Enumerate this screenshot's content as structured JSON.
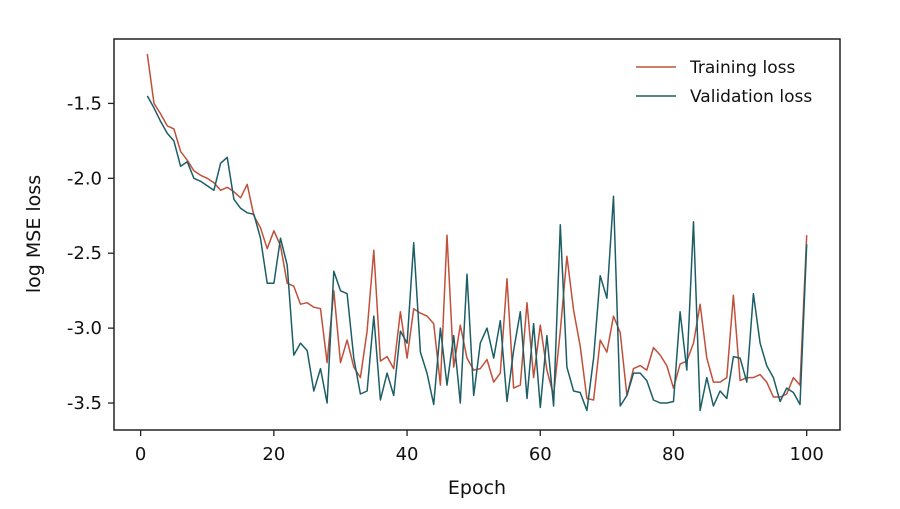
{
  "chart_data": {
    "type": "line",
    "xlabel": "Epoch",
    "ylabel": "log MSE loss",
    "xlim": [
      -4,
      105
    ],
    "ylim": [
      -3.68,
      -1.07
    ],
    "xticks": [
      0,
      20,
      40,
      60,
      80,
      100
    ],
    "yticks": [
      -1.5,
      -2.0,
      -2.5,
      -3.0,
      -3.5
    ],
    "xtick_labels": [
      "0",
      "20",
      "40",
      "60",
      "80",
      "100"
    ],
    "ytick_labels": [
      "-1.5",
      "-2.0",
      "-2.5",
      "-3.0",
      "-3.5"
    ],
    "grid": false,
    "legend_position": "top-right",
    "x": [
      1,
      2,
      3,
      4,
      5,
      6,
      7,
      8,
      9,
      10,
      11,
      12,
      13,
      14,
      15,
      16,
      17,
      18,
      19,
      20,
      21,
      22,
      23,
      24,
      25,
      26,
      27,
      28,
      29,
      30,
      31,
      32,
      33,
      34,
      35,
      36,
      37,
      38,
      39,
      40,
      41,
      42,
      43,
      44,
      45,
      46,
      47,
      48,
      49,
      50,
      51,
      52,
      53,
      54,
      55,
      56,
      57,
      58,
      59,
      60,
      61,
      62,
      63,
      64,
      65,
      66,
      67,
      68,
      69,
      70,
      71,
      72,
      73,
      74,
      75,
      76,
      77,
      78,
      79,
      80,
      81,
      82,
      83,
      84,
      85,
      86,
      87,
      88,
      89,
      90,
      91,
      92,
      93,
      94,
      95,
      96,
      97,
      98,
      99,
      100
    ],
    "series": [
      {
        "name": "Training loss",
        "color": "#c0503a",
        "values": [
          -1.17,
          -1.5,
          -1.57,
          -1.65,
          -1.67,
          -1.82,
          -1.88,
          -1.95,
          -1.98,
          -2.0,
          -2.03,
          -2.08,
          -2.06,
          -2.09,
          -2.13,
          -2.04,
          -2.25,
          -2.33,
          -2.47,
          -2.35,
          -2.45,
          -2.7,
          -2.72,
          -2.84,
          -2.83,
          -2.86,
          -2.87,
          -3.23,
          -2.75,
          -3.23,
          -3.08,
          -3.26,
          -3.33,
          -3.02,
          -2.48,
          -3.22,
          -3.19,
          -3.27,
          -2.89,
          -3.2,
          -2.87,
          -2.9,
          -2.92,
          -2.97,
          -3.38,
          -2.38,
          -3.26,
          -2.98,
          -3.2,
          -3.28,
          -3.27,
          -3.21,
          -3.36,
          -3.3,
          -2.67,
          -3.4,
          -3.38,
          -2.83,
          -3.33,
          -2.98,
          -3.28,
          -3.45,
          -3.02,
          -2.52,
          -2.88,
          -3.12,
          -3.47,
          -3.48,
          -3.08,
          -3.16,
          -2.92,
          -3.03,
          -3.45,
          -3.27,
          -3.25,
          -3.28,
          -3.13,
          -3.18,
          -3.25,
          -3.4,
          -3.24,
          -3.22,
          -3.1,
          -2.84,
          -3.2,
          -3.36,
          -3.36,
          -3.33,
          -2.78,
          -3.35,
          -3.33,
          -3.33,
          -3.31,
          -3.36,
          -3.46,
          -3.46,
          -3.44,
          -3.33,
          -3.38,
          -2.38
        ]
      },
      {
        "name": "Validation loss",
        "color": "#1c5e66",
        "values": [
          -1.45,
          -1.53,
          -1.62,
          -1.7,
          -1.75,
          -1.92,
          -1.89,
          -2.0,
          -2.02,
          -2.05,
          -2.08,
          -1.9,
          -1.86,
          -2.14,
          -2.2,
          -2.23,
          -2.24,
          -2.4,
          -2.7,
          -2.7,
          -2.4,
          -2.58,
          -3.18,
          -3.1,
          -3.15,
          -3.42,
          -3.27,
          -3.5,
          -2.62,
          -2.75,
          -2.77,
          -3.2,
          -3.44,
          -3.42,
          -2.92,
          -3.48,
          -3.3,
          -3.45,
          -3.02,
          -3.1,
          -2.43,
          -3.16,
          -3.3,
          -3.51,
          -3.0,
          -3.38,
          -3.05,
          -3.5,
          -2.64,
          -3.45,
          -3.1,
          -3.0,
          -3.2,
          -2.95,
          -3.49,
          -3.15,
          -2.89,
          -3.47,
          -2.97,
          -3.53,
          -3.05,
          -3.52,
          -2.31,
          -3.26,
          -3.42,
          -3.43,
          -3.55,
          -3.2,
          -2.65,
          -2.8,
          -2.12,
          -3.52,
          -3.45,
          -3.3,
          -3.3,
          -3.35,
          -3.48,
          -3.5,
          -3.5,
          -3.49,
          -2.89,
          -3.28,
          -2.29,
          -3.55,
          -3.33,
          -3.52,
          -3.42,
          -3.47,
          -3.19,
          -3.2,
          -3.36,
          -2.77,
          -3.1,
          -3.25,
          -3.33,
          -3.49,
          -3.4,
          -3.43,
          -3.51,
          -2.44
        ]
      }
    ]
  }
}
